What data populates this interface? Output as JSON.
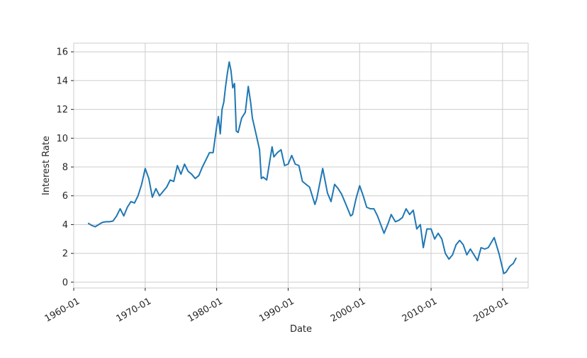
{
  "chart_data": {
    "type": "line",
    "title": "",
    "xlabel": "Date",
    "ylabel": "Interest Rate",
    "xlim": [
      "1960-01",
      "2023-08"
    ],
    "ylim": [
      -0.4,
      16.6
    ],
    "grid": true,
    "legend": "none",
    "x_ticks": [
      "1960-01",
      "1970-01",
      "1980-01",
      "1990-01",
      "2000-01",
      "2010-01",
      "2020-01"
    ],
    "y_ticks": [
      0,
      2,
      4,
      6,
      8,
      10,
      12,
      14,
      16
    ],
    "colors": {
      "line": "#1f77b4",
      "grid": "#cccccc",
      "frame": "#cccccc"
    },
    "series": [
      {
        "x": [
          "1962-01",
          "1962-07",
          "1963-01",
          "1963-07",
          "1964-01",
          "1964-07",
          "1965-01",
          "1965-07",
          "1966-01",
          "1966-07",
          "1967-01",
          "1967-07",
          "1968-01",
          "1968-07",
          "1969-01",
          "1969-07",
          "1970-01",
          "1970-07",
          "1971-01",
          "1971-07",
          "1972-01",
          "1972-07",
          "1973-01",
          "1973-07",
          "1974-01",
          "1974-07",
          "1975-01",
          "1975-07",
          "1976-01",
          "1976-07",
          "1977-01",
          "1977-07",
          "1978-01",
          "1978-07",
          "1979-01",
          "1979-07",
          "1980-01",
          "1980-04",
          "1980-07",
          "1980-10",
          "1981-01",
          "1981-04",
          "1981-07",
          "1981-10",
          "1982-01",
          "1982-04",
          "1982-07",
          "1982-10",
          "1983-01",
          "1983-07",
          "1984-01",
          "1984-06",
          "1984-10",
          "1985-01",
          "1985-07",
          "1986-01",
          "1986-04",
          "1986-07",
          "1987-01",
          "1987-10",
          "1988-01",
          "1988-07",
          "1989-01",
          "1989-07",
          "1990-01",
          "1990-07",
          "1991-01",
          "1991-07",
          "1992-01",
          "1992-07",
          "1993-01",
          "1993-10",
          "1994-01",
          "1994-11",
          "1995-07",
          "1996-01",
          "1996-07",
          "1997-01",
          "1997-07",
          "1998-01",
          "1998-10",
          "1999-01",
          "1999-07",
          "2000-01",
          "2000-07",
          "2001-01",
          "2001-07",
          "2002-01",
          "2002-07",
          "2003-06",
          "2004-01",
          "2004-06",
          "2005-01",
          "2005-07",
          "2006-01",
          "2006-07",
          "2007-01",
          "2007-07",
          "2008-01",
          "2008-07",
          "2008-12",
          "2009-06",
          "2010-01",
          "2010-07",
          "2011-01",
          "2011-07",
          "2012-01",
          "2012-07",
          "2013-01",
          "2013-07",
          "2014-01",
          "2014-07",
          "2015-01",
          "2015-07",
          "2016-07",
          "2017-01",
          "2017-07",
          "2018-01",
          "2018-11",
          "2019-07",
          "2020-03",
          "2020-07",
          "2021-01",
          "2021-07",
          "2021-12"
        ],
        "y": [
          4.1,
          3.95,
          3.85,
          4.0,
          4.15,
          4.2,
          4.2,
          4.25,
          4.6,
          5.1,
          4.6,
          5.2,
          5.6,
          5.5,
          6.0,
          6.8,
          7.9,
          7.2,
          5.9,
          6.5,
          6.0,
          6.3,
          6.6,
          7.1,
          7.0,
          8.1,
          7.5,
          8.2,
          7.7,
          7.5,
          7.2,
          7.4,
          8.0,
          8.5,
          9.0,
          9.0,
          10.8,
          11.5,
          10.3,
          12.0,
          12.5,
          13.6,
          14.5,
          15.3,
          14.7,
          13.5,
          13.8,
          10.5,
          10.4,
          11.4,
          11.8,
          13.6,
          12.5,
          11.4,
          10.3,
          9.2,
          7.2,
          7.3,
          7.1,
          9.4,
          8.7,
          9.0,
          9.2,
          8.1,
          8.2,
          8.8,
          8.2,
          8.1,
          7.0,
          6.8,
          6.6,
          5.4,
          5.8,
          7.9,
          6.2,
          5.6,
          6.8,
          6.5,
          6.1,
          5.5,
          4.6,
          4.7,
          5.8,
          6.7,
          6.0,
          5.2,
          5.1,
          5.1,
          4.6,
          3.4,
          4.1,
          4.7,
          4.2,
          4.3,
          4.5,
          5.1,
          4.7,
          5.0,
          3.7,
          4.0,
          2.4,
          3.7,
          3.7,
          3.0,
          3.4,
          3.0,
          2.0,
          1.6,
          1.9,
          2.6,
          2.9,
          2.6,
          1.9,
          2.3,
          1.5,
          2.4,
          2.3,
          2.4,
          3.1,
          2.0,
          0.6,
          0.7,
          1.1,
          1.3,
          1.7
        ]
      }
    ]
  }
}
